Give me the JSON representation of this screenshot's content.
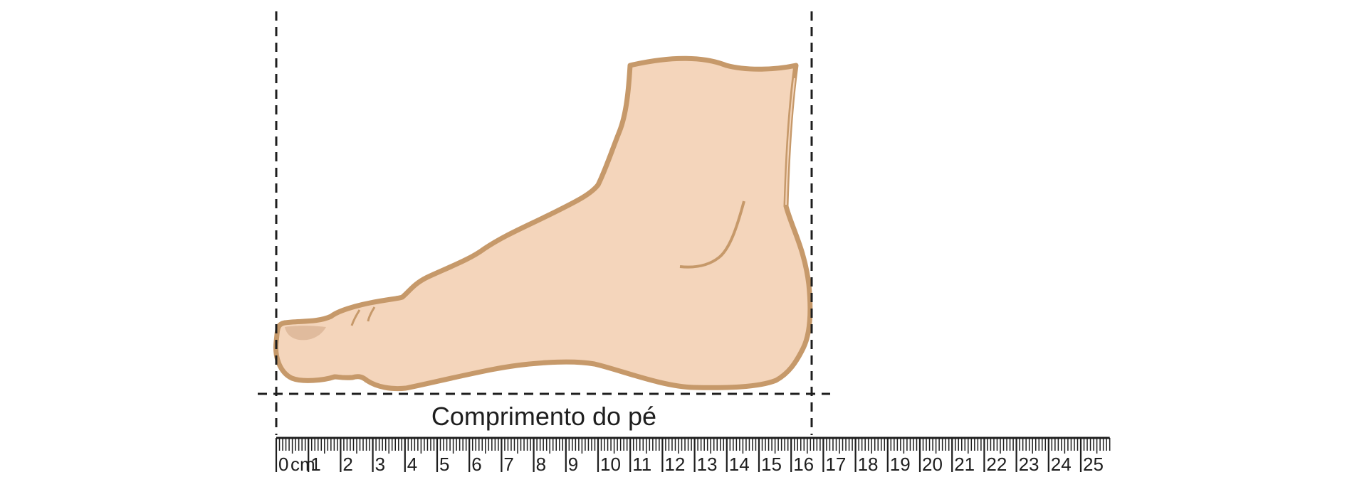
{
  "caption": "Comprimento do pé",
  "ruler": {
    "unit": "cm",
    "min": 0,
    "max": 25,
    "labels": [
      "0",
      "1",
      "2",
      "3",
      "4",
      "5",
      "6",
      "7",
      "8",
      "9",
      "10",
      "11",
      "12",
      "13",
      "14",
      "15",
      "16",
      "17",
      "18",
      "19",
      "20",
      "21",
      "22",
      "23",
      "24",
      "25"
    ]
  },
  "colors": {
    "skin": "#f4d5bb",
    "outline": "#c6996a",
    "nail": "#e0bb9d",
    "guide": "#1e1e1e",
    "ruler": "#1e1e1e"
  },
  "icons": [
    "foot-illustration"
  ]
}
